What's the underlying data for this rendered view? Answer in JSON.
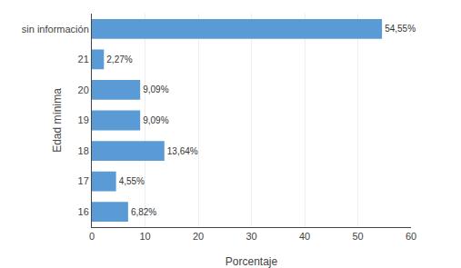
{
  "chart_data": {
    "type": "bar",
    "orientation": "horizontal",
    "categories": [
      "sin información",
      "21",
      "20",
      "19",
      "18",
      "17",
      "16"
    ],
    "values": [
      54.55,
      2.27,
      9.09,
      9.09,
      13.64,
      4.55,
      6.82
    ],
    "value_labels": [
      "54,55%",
      "2,27%",
      "9,09%",
      "9,09%",
      "13,64%",
      "4,55%",
      "6,82%"
    ],
    "color": "#5b9bd5",
    "xlabel": "Porcentaje",
    "ylabel": "Edad mínima",
    "xlim": [
      0,
      60
    ],
    "xticks": [
      0,
      10,
      20,
      30,
      40,
      50,
      60
    ],
    "grid": true,
    "data_labels": true
  }
}
